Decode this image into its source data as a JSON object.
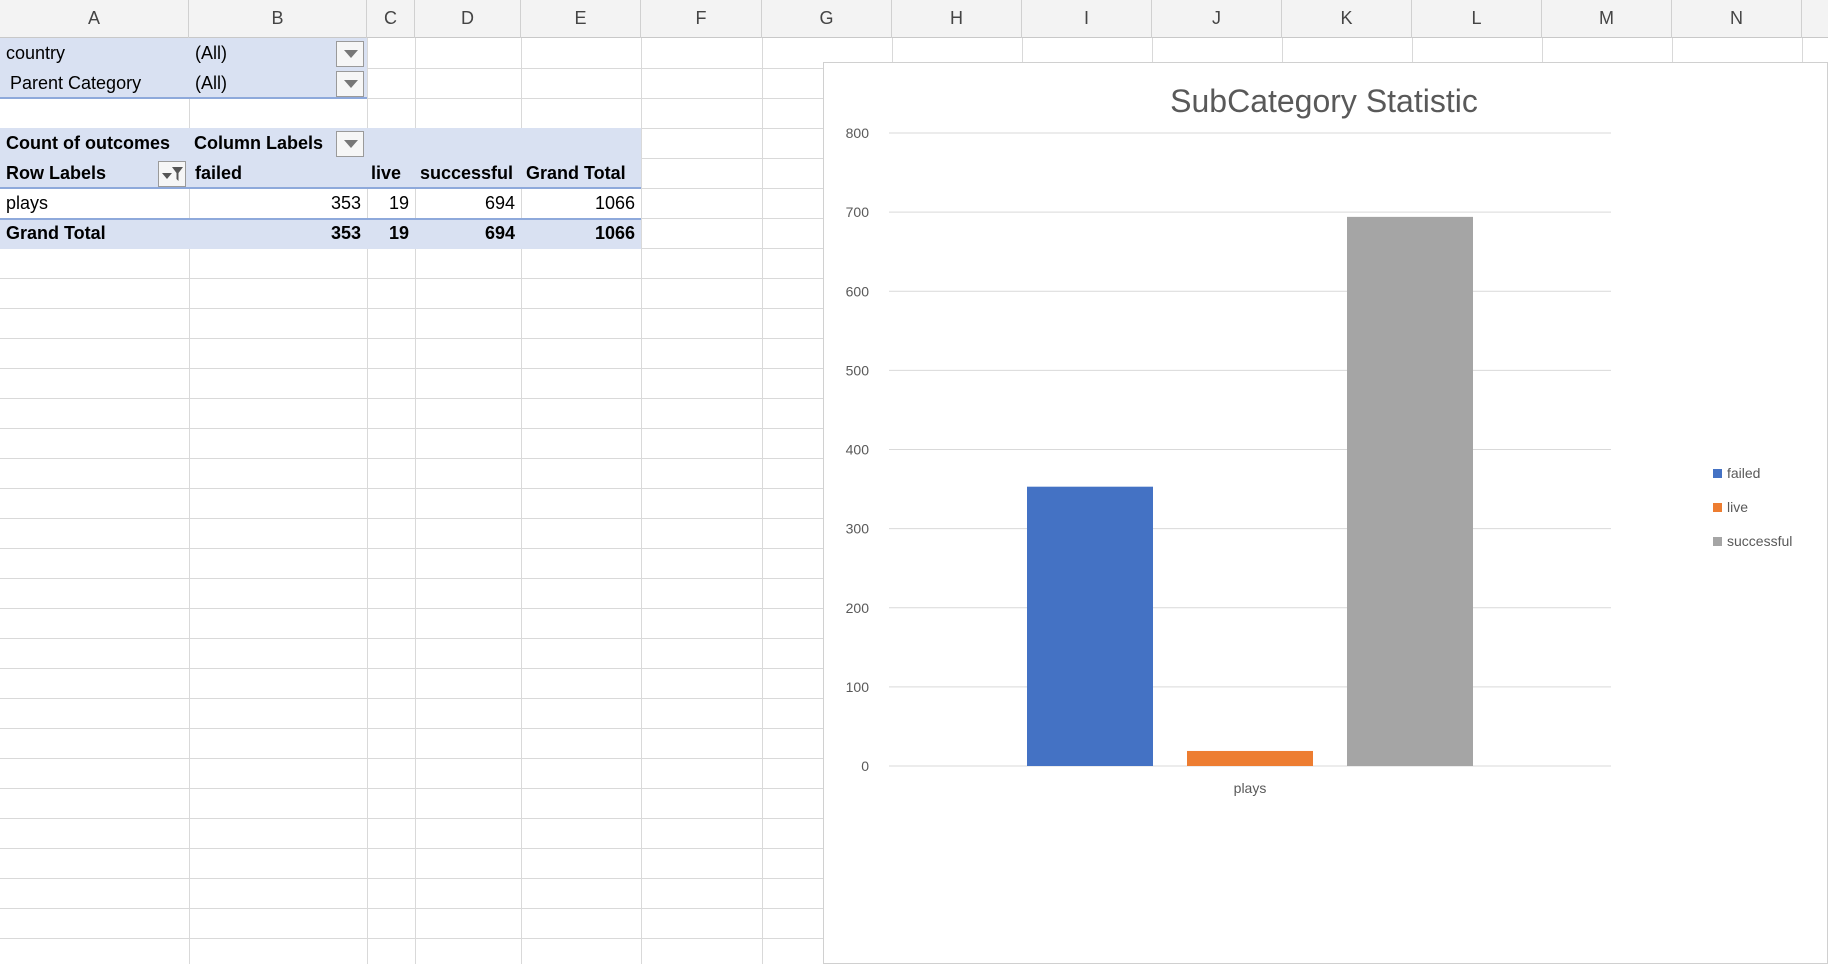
{
  "columns": [
    "A",
    "B",
    "C",
    "D",
    "E",
    "F",
    "G",
    "H",
    "I",
    "J",
    "K",
    "L",
    "M",
    "N"
  ],
  "filters": [
    {
      "field": "country",
      "value": "(All)"
    },
    {
      "field": "Parent Category",
      "value": "(All)"
    }
  ],
  "pivot": {
    "values_label": "Count of outcomes",
    "column_labels": "Column Labels",
    "row_labels": "Row Labels",
    "headers": [
      "failed",
      "live",
      "successful",
      "Grand Total"
    ],
    "rows": [
      {
        "label": "plays",
        "cells": [
          "353",
          "19",
          "694",
          "1066"
        ]
      }
    ],
    "grand_total": {
      "label": "Grand Total",
      "cells": [
        "353",
        "19",
        "694",
        "1066"
      ]
    }
  },
  "chart_data": {
    "type": "bar",
    "title": "SubCategory Statistic",
    "categories": [
      "plays"
    ],
    "series": [
      {
        "name": "failed",
        "values": [
          353
        ],
        "color": "#4472c4"
      },
      {
        "name": "live",
        "values": [
          19
        ],
        "color": "#ed7d31"
      },
      {
        "name": "successful",
        "values": [
          694
        ],
        "color": "#a5a5a5"
      }
    ],
    "ylim": [
      0,
      800
    ],
    "yticks": [
      "0",
      "100",
      "200",
      "300",
      "400",
      "500",
      "600",
      "700",
      "800"
    ],
    "grid": true,
    "legend_position": "right"
  }
}
